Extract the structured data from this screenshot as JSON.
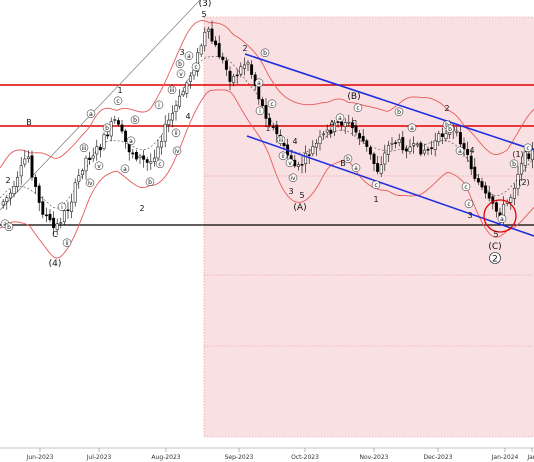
{
  "chart_data": {
    "type": "candlestick",
    "title": "",
    "xlabel": "",
    "ylabel": "",
    "grid": false,
    "x_tick_labels": [
      "Jun-2023",
      "Jul-2023",
      "Aug-2023",
      "Sep-2023",
      "Oct-2023",
      "Nov-2023",
      "Dec-2023",
      "Jan-2024",
      "Jan"
    ],
    "colors": {
      "up_candle": "#ffffff",
      "down_candle": "#000000",
      "bollinger": "#e85a5a",
      "channel": "#1f2ee0",
      "resistance": "#e00000",
      "support": "#000000",
      "projection_zone": "#f9e0e2",
      "projection_lines": "#f08a8a",
      "trendline": "#888888"
    },
    "wave_labels": {
      "count_big": [
        "(3)",
        "(4)",
        "(A)",
        "(B)",
        "(C)",
        "(1)",
        "(2)"
      ],
      "count_mid": [
        "5",
        "4",
        "3",
        "1",
        "2",
        "A",
        "B",
        "C",
        "B",
        "C",
        "5",
        "4",
        "3",
        "1",
        "2",
        "3",
        "5"
      ],
      "count_small": [
        "a",
        "b",
        "c",
        "i",
        "ii",
        "iii",
        "iv",
        "v"
      ],
      "circled_count": [
        "2"
      ]
    }
  }
}
